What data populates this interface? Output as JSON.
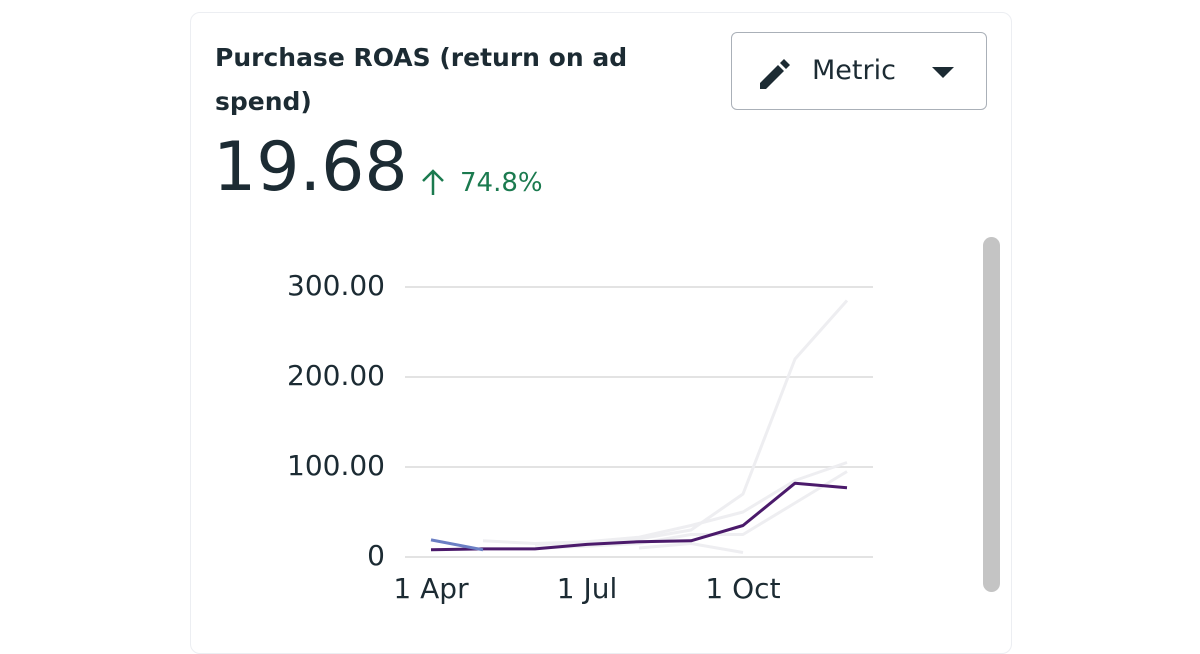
{
  "header": {
    "title": "Purchase ROAS (return on ad spend)",
    "button": "Metric",
    "value": "19.68",
    "change": "74.8%"
  },
  "chart_data": {
    "type": "line",
    "categories": [
      "1 Apr",
      null,
      null,
      "1 Jul",
      null,
      null,
      "1 Oct",
      null,
      null
    ],
    "series": [
      {
        "color": "#eeeef1",
        "values": [
          null,
          null,
          14,
          16,
          20,
          30,
          70,
          220,
          285
        ]
      },
      {
        "color": "#eeeef1",
        "values": [
          null,
          18,
          15,
          17,
          22,
          35,
          50,
          85,
          105
        ]
      },
      {
        "color": "#eeeef1",
        "values": [
          null,
          null,
          10,
          12,
          15,
          25,
          25,
          60,
          95
        ]
      },
      {
        "color": "#eeeef1",
        "values": [
          null,
          null,
          null,
          null,
          10,
          15,
          5,
          null,
          null
        ]
      },
      {
        "color": "#4b1a6b",
        "values": [
          8,
          9,
          9,
          14,
          17,
          18,
          35,
          82,
          77
        ]
      },
      {
        "color": "#6b7fc4",
        "values": [
          19,
          8,
          null,
          null,
          null,
          null,
          null,
          null,
          null
        ]
      }
    ],
    "ylim": [
      0,
      300
    ],
    "yticks": [
      0,
      {
        "value": 100,
        "label": "100.00"
      },
      {
        "value": 200,
        "label": "200.00"
      },
      {
        "value": 300,
        "label": "300.00"
      }
    ],
    "grid": true
  }
}
